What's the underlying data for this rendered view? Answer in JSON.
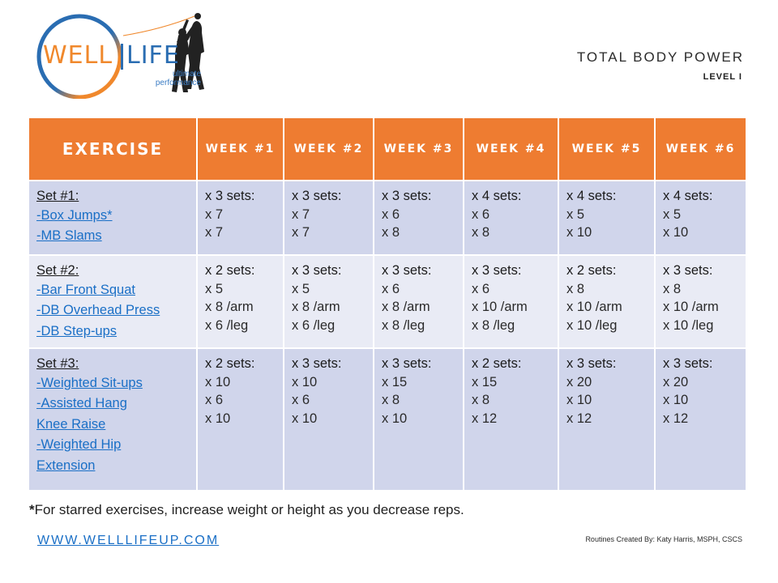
{
  "logo": {
    "word1": "WELL",
    "word2": "LIFE",
    "tagline1": "ultimate",
    "tagline2": "performance",
    "colors": {
      "orange": "#f0882c",
      "blue": "#2a6db2"
    }
  },
  "header": {
    "title": "TOTAL BODY POWER",
    "level": "LEVEL I"
  },
  "table": {
    "header_exercise": "EXERCISE",
    "weeks": [
      "WEEK #1",
      "WEEK #2",
      "WEEK #3",
      "WEEK #4",
      "WEEK #5",
      "WEEK #6"
    ],
    "header_color": "#ee7c31",
    "rows": [
      {
        "set": "Set #1:",
        "exercises": [
          "-Box Jumps*",
          "-MB Slams"
        ],
        "weeks": [
          {
            "sets": "x 3 sets:",
            "reps": [
              "x 7",
              "x 7"
            ]
          },
          {
            "sets": "x 3 sets:",
            "reps": [
              "x 7",
              "x 7"
            ]
          },
          {
            "sets": "x 3 sets:",
            "reps": [
              "x 6",
              "x 8"
            ]
          },
          {
            "sets": "x 4 sets:",
            "reps": [
              "x 6",
              "x 8"
            ]
          },
          {
            "sets": "x 4 sets:",
            "reps": [
              "x 5",
              "x 10"
            ]
          },
          {
            "sets": "x 4 sets:",
            "reps": [
              "x 5",
              "x 10"
            ]
          }
        ]
      },
      {
        "set": "Set #2:",
        "exercises": [
          "-Bar Front Squat",
          "-DB Overhead Press",
          "-DB Step-ups"
        ],
        "weeks": [
          {
            "sets": "x 2 sets:",
            "reps": [
              "x 5",
              "x 8 /arm",
              "x 6 /leg"
            ]
          },
          {
            "sets": "x 3 sets:",
            "reps": [
              "x 5",
              "x 8 /arm",
              "x 6 /leg"
            ]
          },
          {
            "sets": "x 3 sets:",
            "reps": [
              "x 6",
              "x 8 /arm",
              "x 8 /leg"
            ]
          },
          {
            "sets": "x 3 sets:",
            "reps": [
              "x 6",
              "x 10 /arm",
              "x 8 /leg"
            ]
          },
          {
            "sets": "x 2 sets:",
            "reps": [
              "x 8",
              "x 10 /arm",
              "x 10 /leg"
            ]
          },
          {
            "sets": "x 3 sets:",
            "reps": [
              "x 8",
              "x 10 /arm",
              "x 10 /leg"
            ]
          }
        ]
      },
      {
        "set": "Set #3:",
        "exercises": [
          "-Weighted Sit-ups",
          "-Assisted Hang",
          "Knee Raise",
          "-Weighted Hip",
          "Extension"
        ],
        "weeks": [
          {
            "sets": "x 2 sets:",
            "reps": [
              "x 10",
              "x 6",
              "x 10"
            ]
          },
          {
            "sets": "x 3 sets:",
            "reps": [
              "x 10",
              "x 6",
              "x 10"
            ]
          },
          {
            "sets": "x 3 sets:",
            "reps": [
              "x 15",
              "x 8",
              "x 10"
            ]
          },
          {
            "sets": "x 2 sets:",
            "reps": [
              "x 15",
              "x 8",
              "x 12"
            ]
          },
          {
            "sets": "x 3 sets:",
            "reps": [
              "x 20",
              "x 10",
              "x 12"
            ]
          },
          {
            "sets": "x 3 sets:",
            "reps": [
              "x 20",
              "x 10",
              "x 12"
            ]
          }
        ]
      }
    ]
  },
  "footer": {
    "note_star": "*",
    "note": "For starred exercises, increase weight or height as you decrease reps.",
    "website": "WWW.WELLLIFEUP.COM",
    "credit": "Routines Created By: Katy Harris, MSPH, CSCS"
  }
}
